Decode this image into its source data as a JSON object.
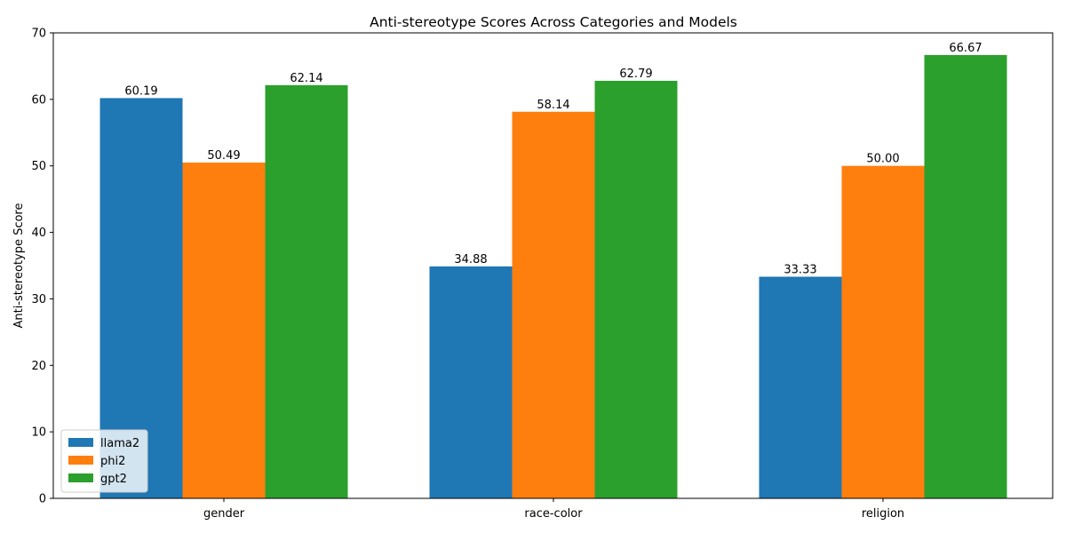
{
  "chart_data": {
    "type": "bar",
    "title": "Anti-stereotype Scores Across Categories and Models",
    "xlabel": "",
    "ylabel": "Anti-stereotype Score",
    "categories": [
      "gender",
      "race-color",
      "religion"
    ],
    "series": [
      {
        "name": "llama2",
        "color": "#1f77b4",
        "values": [
          60.19,
          34.88,
          33.33
        ],
        "labels": [
          "60.19",
          "34.88",
          "33.33"
        ]
      },
      {
        "name": "phi2",
        "color": "#ff7f0e",
        "values": [
          50.49,
          58.14,
          50.0
        ],
        "labels": [
          "50.49",
          "58.14",
          "50.00"
        ]
      },
      {
        "name": "gpt2",
        "color": "#2ca02c",
        "values": [
          62.14,
          62.79,
          66.67
        ],
        "labels": [
          "62.14",
          "62.79",
          "66.67"
        ]
      }
    ],
    "ylim": [
      0,
      70
    ],
    "yticks": [
      0,
      10,
      20,
      30,
      40,
      50,
      60,
      70
    ],
    "ytick_labels": [
      "0",
      "10",
      "20",
      "30",
      "40",
      "50",
      "60",
      "70"
    ],
    "grid": false,
    "legend_position": "lower-left"
  }
}
